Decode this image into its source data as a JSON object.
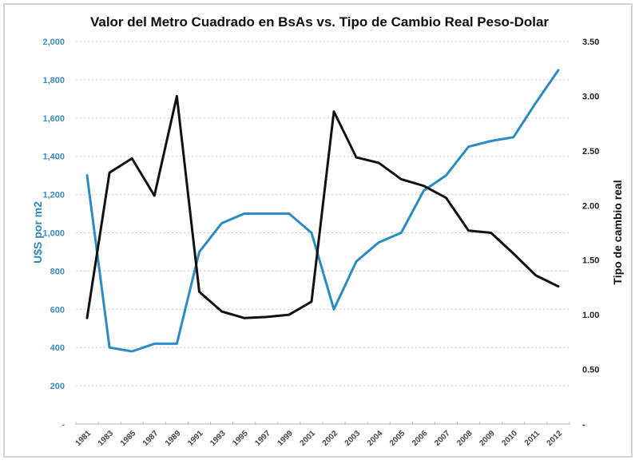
{
  "chart_data": {
    "type": "line",
    "title": "Valor del Metro Cuadrado en BsAs vs. Tipo de Cambio Real Peso-Dolar",
    "xlabel": "",
    "ylabel": "U$S por m2",
    "ylabel_right": "Tipo de cambio real",
    "categories": [
      "1981",
      "1983",
      "1985",
      "1987",
      "1989",
      "1991",
      "1993",
      "1995",
      "1997",
      "1999",
      "2001",
      "2002",
      "2003",
      "2004",
      "2005",
      "2006",
      "2007",
      "2008",
      "2009",
      "2010",
      "2011",
      "2012"
    ],
    "ylim": [
      0,
      2000
    ],
    "ylim_right": [
      0,
      3.5
    ],
    "yticks": [
      "-",
      "200",
      "400",
      "600",
      "800",
      "1,000",
      "1,200",
      "1,400",
      "1,600",
      "1,800",
      "2,000"
    ],
    "yticks_right": [
      "-",
      "0.50",
      "1.00",
      "1.50",
      "2.00",
      "2.50",
      "3.00",
      "3.50"
    ],
    "grid": true,
    "legend": "none",
    "series": [
      {
        "name": "U$S por m2",
        "axis": "left",
        "color": "#2a8bc9",
        "values": [
          1300,
          400,
          380,
          420,
          420,
          900,
          1050,
          1100,
          1100,
          1100,
          1000,
          600,
          850,
          950,
          1000,
          1220,
          1300,
          1450,
          1480,
          1500,
          1680,
          1850
        ]
      },
      {
        "name": "Tipo de cambio real",
        "axis": "right",
        "color": "#111111",
        "values": [
          0.97,
          2.3,
          2.43,
          2.09,
          3.0,
          1.21,
          1.03,
          0.97,
          0.98,
          1.0,
          1.12,
          2.86,
          2.44,
          2.39,
          2.24,
          2.18,
          2.07,
          1.77,
          1.75,
          1.56,
          1.36,
          1.26
        ]
      }
    ]
  },
  "colors": {
    "left_axis": "#3b8ec8",
    "grid": "#c8c8c8",
    "frame": "#d4d4d4"
  }
}
